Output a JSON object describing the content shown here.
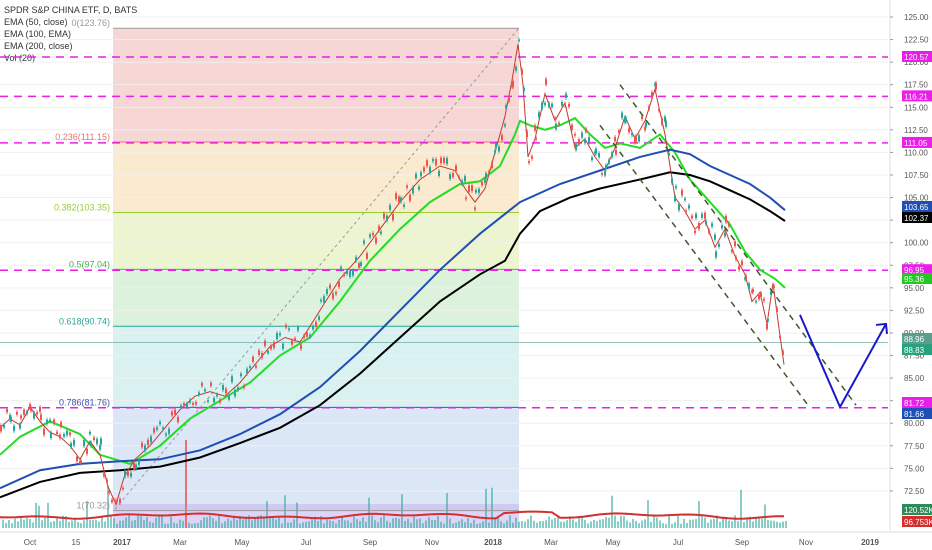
{
  "legend": {
    "symbol": "SPDR S&P CHINA ETF, D, BATS",
    "ema50": "EMA (50, close)",
    "ema100": "EMA (100, EMA)",
    "ema200": "EMA (200, close)",
    "vol": "Vol (20)"
  },
  "chart_data": {
    "type": "line",
    "title": "SPDR S&P CHINA ETF, D, BATS",
    "y_axis": {
      "ticks": [
        "125.00",
        "122.50",
        "120.00",
        "117.50",
        "115.00",
        "112.50",
        "110.00",
        "107.50",
        "105.00",
        "102.50",
        "100.00",
        "97.50",
        "95.00",
        "92.50",
        "90.00",
        "87.50",
        "85.00",
        "82.50",
        "80.00",
        "77.50",
        "75.00",
        "72.50"
      ],
      "ylim": [
        70.5,
        125.5
      ]
    },
    "x_axis": {
      "labels": [
        "Oct",
        "15",
        "2017",
        "Mar",
        "May",
        "Jul",
        "Sep",
        "Nov",
        "2018",
        "Mar",
        "May",
        "Jul",
        "Sep",
        "Nov",
        "2019"
      ]
    },
    "fibonacci": [
      {
        "label": "0(123.76)",
        "level": 0,
        "price": 123.76
      },
      {
        "label": "0.236(111.15)",
        "level": 0.236,
        "price": 111.15
      },
      {
        "label": "0.382(103.35)",
        "level": 0.382,
        "price": 103.35
      },
      {
        "label": "0.5(97.04)",
        "level": 0.5,
        "price": 97.04
      },
      {
        "label": "0.618(90.74)",
        "level": 0.618,
        "price": 90.74
      },
      {
        "label": "0.786(81.76)",
        "level": 0.786,
        "price": 81.76
      },
      {
        "label": "1(70.32)",
        "level": 1,
        "price": 70.32
      }
    ],
    "horizontal_levels": [
      {
        "price": 120.57,
        "label": "120.57"
      },
      {
        "price": 116.21,
        "label": "116.21"
      },
      {
        "price": 111.05,
        "label": "111.05"
      },
      {
        "price": 96.95,
        "label": "96.95"
      },
      {
        "price": 81.72,
        "label": "81.72"
      }
    ],
    "price_tags": [
      {
        "label": "120.57",
        "color": "#e91ee9"
      },
      {
        "label": "116.21",
        "color": "#e91ee9"
      },
      {
        "label": "111.05",
        "color": "#e91ee9"
      },
      {
        "label": "103.65",
        "color": "#1f4fb3"
      },
      {
        "label": "102.37",
        "color": "#000000"
      },
      {
        "label": "96.95",
        "color": "#e91ee9"
      },
      {
        "label": "95.36",
        "color": "#22c722"
      },
      {
        "label": "88.96",
        "color": "#5a9e8f"
      },
      {
        "label": "88.83",
        "color": "#27a17e"
      },
      {
        "label": "81.72",
        "color": "#e91ee9"
      },
      {
        "label": "81.66",
        "color": "#1f4fb3"
      },
      {
        "label": "120.52K",
        "color": "#2e8b57"
      },
      {
        "label": "96.753K",
        "color": "#d32f2f"
      }
    ],
    "series": [
      {
        "name": "EMA (50, close)",
        "color": "#22dd22",
        "points": [
          [
            0,
            76.5
          ],
          [
            20,
            78.5
          ],
          [
            50,
            80.2
          ],
          [
            80,
            78.8
          ],
          [
            100,
            76.5
          ],
          [
            130,
            75.5
          ],
          [
            160,
            77.5
          ],
          [
            190,
            80.5
          ],
          [
            220,
            82.5
          ],
          [
            250,
            84.5
          ],
          [
            280,
            87.5
          ],
          [
            310,
            89.5
          ],
          [
            340,
            93.5
          ],
          [
            370,
            98.0
          ],
          [
            400,
            101.5
          ],
          [
            430,
            104.5
          ],
          [
            460,
            106.5
          ],
          [
            480,
            106.8
          ],
          [
            500,
            108.5
          ],
          [
            515,
            112.0
          ],
          [
            520,
            113.5
          ],
          [
            530,
            113.0
          ],
          [
            545,
            112.5
          ],
          [
            560,
            113.0
          ],
          [
            575,
            113.8
          ],
          [
            590,
            112.0
          ],
          [
            605,
            110.5
          ],
          [
            620,
            111.0
          ],
          [
            640,
            110.5
          ],
          [
            660,
            112.0
          ],
          [
            675,
            110.0
          ],
          [
            690,
            107.0
          ],
          [
            710,
            104.5
          ],
          [
            730,
            102.0
          ],
          [
            745,
            99.0
          ],
          [
            760,
            97.0
          ],
          [
            775,
            96.0
          ],
          [
            785,
            95.0
          ]
        ]
      },
      {
        "name": "EMA (100, EMA)",
        "color": "#1f4fb3",
        "points": [
          [
            0,
            72.8
          ],
          [
            40,
            74.8
          ],
          [
            80,
            75.5
          ],
          [
            120,
            75.8
          ],
          [
            160,
            76.0
          ],
          [
            200,
            77.0
          ],
          [
            240,
            78.8
          ],
          [
            280,
            81.0
          ],
          [
            320,
            84.0
          ],
          [
            360,
            88.0
          ],
          [
            400,
            92.5
          ],
          [
            440,
            97.0
          ],
          [
            480,
            101.0
          ],
          [
            520,
            104.5
          ],
          [
            560,
            106.5
          ],
          [
            600,
            108.0
          ],
          [
            640,
            109.5
          ],
          [
            670,
            110.3
          ],
          [
            690,
            109.8
          ],
          [
            710,
            108.5
          ],
          [
            730,
            107.5
          ],
          [
            750,
            106.5
          ],
          [
            770,
            105.0
          ],
          [
            785,
            103.6
          ]
        ]
      },
      {
        "name": "EMA (200, close)",
        "color": "#000000",
        "points": [
          [
            0,
            71.8
          ],
          [
            40,
            73.5
          ],
          [
            80,
            74.5
          ],
          [
            120,
            74.8
          ],
          [
            160,
            75.2
          ],
          [
            200,
            76.2
          ],
          [
            240,
            77.8
          ],
          [
            280,
            79.5
          ],
          [
            320,
            82.0
          ],
          [
            360,
            85.5
          ],
          [
            400,
            89.5
          ],
          [
            440,
            93.5
          ],
          [
            480,
            96.5
          ],
          [
            505,
            98.0
          ],
          [
            520,
            101.0
          ],
          [
            540,
            103.5
          ],
          [
            570,
            105.0
          ],
          [
            600,
            106.0
          ],
          [
            640,
            107.0
          ],
          [
            670,
            107.8
          ],
          [
            690,
            107.5
          ],
          [
            710,
            106.8
          ],
          [
            730,
            105.8
          ],
          [
            750,
            104.8
          ],
          [
            770,
            103.5
          ],
          [
            785,
            102.4
          ]
        ]
      },
      {
        "name": "Price",
        "color": "#c0392b",
        "points": [
          [
            0,
            79.5
          ],
          [
            10,
            80.5
          ],
          [
            20,
            79.8
          ],
          [
            30,
            81.8
          ],
          [
            40,
            80.2
          ],
          [
            50,
            79.0
          ],
          [
            60,
            78.5
          ],
          [
            70,
            77.5
          ],
          [
            80,
            76.0
          ],
          [
            90,
            78.0
          ],
          [
            100,
            76.5
          ],
          [
            108,
            73.0
          ],
          [
            116,
            71.0
          ],
          [
            124,
            74.0
          ],
          [
            135,
            76.0
          ],
          [
            150,
            77.5
          ],
          [
            165,
            79.5
          ],
          [
            180,
            81.5
          ],
          [
            195,
            83.0
          ],
          [
            210,
            83.5
          ],
          [
            225,
            83.0
          ],
          [
            240,
            84.5
          ],
          [
            255,
            86.5
          ],
          [
            270,
            88.5
          ],
          [
            285,
            89.5
          ],
          [
            300,
            89.0
          ],
          [
            320,
            92.5
          ],
          [
            340,
            96.0
          ],
          [
            360,
            98.5
          ],
          [
            380,
            101.5
          ],
          [
            400,
            104.5
          ],
          [
            420,
            107.0
          ],
          [
            440,
            108.5
          ],
          [
            455,
            108.0
          ],
          [
            465,
            106.0
          ],
          [
            475,
            104.5
          ],
          [
            485,
            106.0
          ],
          [
            495,
            110.0
          ],
          [
            505,
            114.0
          ],
          [
            512,
            118.0
          ],
          [
            518,
            122.0
          ],
          [
            523,
            117.5
          ],
          [
            528,
            109.5
          ],
          [
            535,
            111.5
          ],
          [
            545,
            116.5
          ],
          [
            555,
            113.5
          ],
          [
            565,
            115.5
          ],
          [
            575,
            110.5
          ],
          [
            585,
            111.5
          ],
          [
            595,
            109.5
          ],
          [
            605,
            108.0
          ],
          [
            615,
            110.5
          ],
          [
            625,
            114.0
          ],
          [
            635,
            111.5
          ],
          [
            645,
            113.5
          ],
          [
            655,
            117.0
          ],
          [
            665,
            112.0
          ],
          [
            675,
            105.0
          ],
          [
            685,
            103.5
          ],
          [
            695,
            101.5
          ],
          [
            705,
            102.5
          ],
          [
            715,
            99.5
          ],
          [
            725,
            101.5
          ],
          [
            735,
            98.5
          ],
          [
            745,
            96.5
          ],
          [
            752,
            93.5
          ],
          [
            760,
            94.5
          ],
          [
            767,
            91.0
          ],
          [
            773,
            95.5
          ],
          [
            779,
            90.5
          ],
          [
            784,
            86.5
          ]
        ]
      }
    ],
    "channel": {
      "upper": [
        [
          620,
          117.5
        ],
        [
          856,
          82.0
        ]
      ],
      "lower": [
        [
          600,
          113.0
        ],
        [
          808,
          82.0
        ]
      ]
    },
    "arrow": {
      "points": [
        [
          800,
          92.0
        ],
        [
          840,
          81.8
        ],
        [
          886,
          91.0
        ]
      ],
      "color": "#1919cc"
    },
    "volume": {
      "color": "#26a69a",
      "avg_color": "#d32f2f"
    }
  }
}
